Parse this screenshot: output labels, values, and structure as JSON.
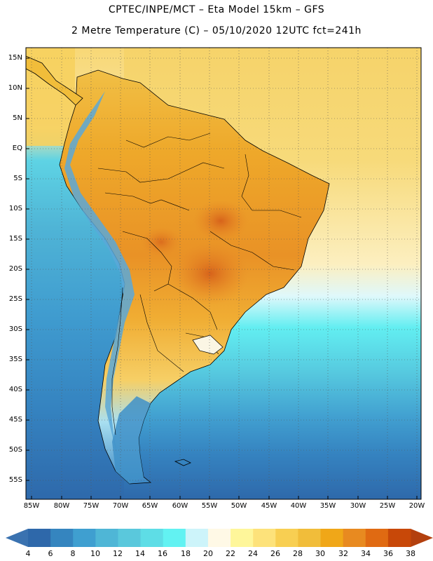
{
  "title_line_1": "CPTEC/INPE/MCT –  Eta Model 15km – GFS",
  "title_line_2": "2 Metre Temperature (C) – 05/10/2020 12UTC fct=241h",
  "lat_labels": [
    "15N",
    "10N",
    "5N",
    "EQ",
    "5S",
    "10S",
    "15S",
    "20S",
    "25S",
    "30S",
    "35S",
    "40S",
    "45S",
    "50S",
    "55S"
  ],
  "lon_labels": [
    "85W",
    "80W",
    "75W",
    "70W",
    "65W",
    "60W",
    "55W",
    "50W",
    "45W",
    "40W",
    "35W",
    "30W",
    "25W",
    "20W"
  ],
  "colorbar": {
    "labels": [
      "4",
      "6",
      "8",
      "10",
      "12",
      "14",
      "16",
      "18",
      "20",
      "22",
      "24",
      "26",
      "28",
      "30",
      "32",
      "34",
      "36",
      "38"
    ],
    "low_end_color": "#3a72b0",
    "high_end_color": "#b3400e",
    "colors": [
      "#2e68aa",
      "#3585bf",
      "#3f9fd0",
      "#4fb6d6",
      "#5ac8dc",
      "#5edde6",
      "#62f2f2",
      "#cdf4fa",
      "#fff9e6",
      "#fef69a",
      "#fde27a",
      "#f8cf52",
      "#f1bd3a",
      "#f0a718",
      "#e88a20",
      "#e06a12",
      "#c84808"
    ]
  },
  "map_colors": {
    "ocean_cold": "#2f6aac",
    "ocean_mid": "#4fb3d6",
    "ocean_cyan": "#5ee6ee",
    "ocean_light": "#d8f6fa",
    "ocean_warm": "#f8d86a",
    "land_warm": "#f3b440",
    "land_hot": "#e07a1c",
    "andes": "#5aa8d8"
  }
}
